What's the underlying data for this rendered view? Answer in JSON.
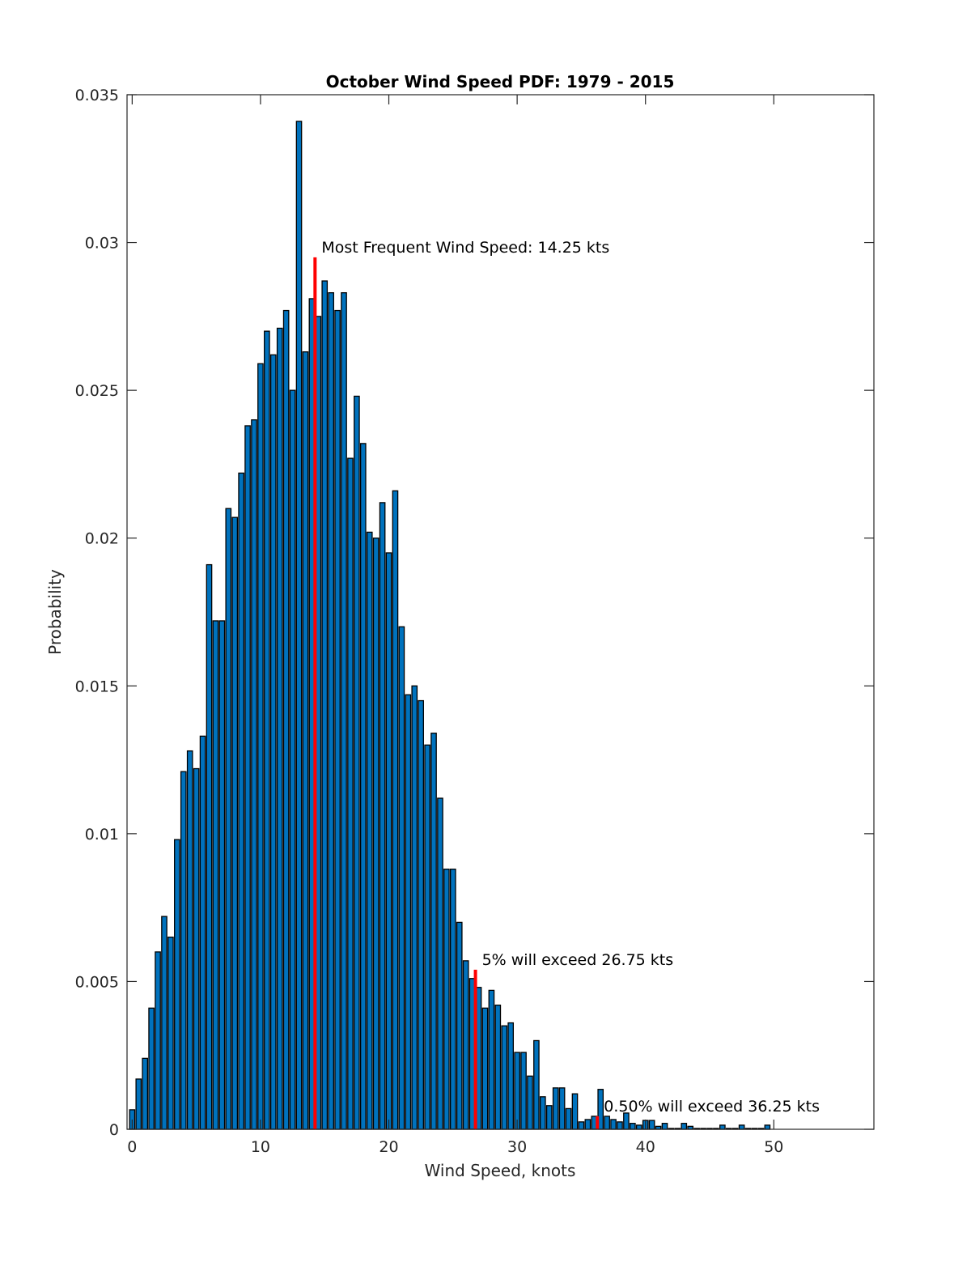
{
  "chart_data": {
    "type": "bar",
    "title": "October Wind Speed PDF: 1979 - 2015",
    "xlabel": "Wind Speed, knots",
    "ylabel": "Probability",
    "xlim": [
      -0.4,
      57.8
    ],
    "ylim": [
      0,
      0.035
    ],
    "xticks": [
      0,
      10,
      20,
      30,
      40,
      50
    ],
    "xtick_labels": [
      "0",
      "10",
      "20",
      "30",
      "40",
      "50"
    ],
    "yticks": [
      0,
      0.005,
      0.01,
      0.015,
      0.02,
      0.025,
      0.03,
      0.035
    ],
    "ytick_labels": [
      "0",
      "0.005",
      "0.01",
      "0.015",
      "0.02",
      "0.025",
      "0.03",
      "0.035"
    ],
    "grid": false,
    "bar_color": "#0072bd",
    "bar_edge_color": "#000000",
    "marker_color": "#ff0000",
    "x": [
      0,
      0.5,
      1,
      1.5,
      2,
      2.5,
      3,
      3.5,
      4,
      4.5,
      5,
      5.5,
      6,
      6.5,
      7,
      7.5,
      8,
      8.5,
      9,
      9.5,
      10,
      10.5,
      11,
      11.5,
      12,
      12.5,
      13,
      13.5,
      14,
      14.5,
      15,
      15.5,
      16,
      16.5,
      17,
      17.5,
      18,
      18.5,
      19,
      19.5,
      20,
      20.5,
      21,
      21.5,
      22,
      22.5,
      23,
      23.5,
      24,
      24.5,
      25,
      25.5,
      26,
      26.5,
      27,
      27.5,
      28,
      28.5,
      29,
      29.5,
      30,
      30.5,
      31,
      31.5,
      32,
      32.5,
      33,
      33.5,
      34,
      34.5,
      35,
      35.5,
      36,
      36.5,
      37,
      37.5,
      38,
      38.5,
      39,
      39.5,
      40,
      40.5,
      41,
      41.5,
      42,
      42.5,
      43,
      43.5,
      44,
      44.5,
      45,
      45.5,
      46,
      46.5,
      47,
      47.5,
      48,
      48.5,
      49,
      49.5
    ],
    "values": [
      0.00066,
      0.0017,
      0.0024,
      0.0041,
      0.006,
      0.0072,
      0.0065,
      0.0098,
      0.0121,
      0.0128,
      0.0122,
      0.0133,
      0.0191,
      0.0172,
      0.0172,
      0.021,
      0.0207,
      0.0222,
      0.0238,
      0.024,
      0.0259,
      0.027,
      0.0262,
      0.0271,
      0.0277,
      0.025,
      0.0341,
      0.0263,
      0.0281,
      0.0275,
      0.0287,
      0.0283,
      0.0277,
      0.0283,
      0.0227,
      0.0248,
      0.0232,
      0.0202,
      0.02,
      0.0212,
      0.0195,
      0.0216,
      0.017,
      0.0147,
      0.015,
      0.0145,
      0.013,
      0.0134,
      0.0112,
      0.0088,
      0.0088,
      0.007,
      0.0057,
      0.0051,
      0.0048,
      0.0041,
      0.0047,
      0.0042,
      0.0035,
      0.0036,
      0.0026,
      0.0026,
      0.0018,
      0.003,
      0.0011,
      0.0008,
      0.0014,
      0.0014,
      0.0007,
      0.0012,
      0.00025,
      0.00033,
      0.00044,
      0.00135,
      0.00044,
      0.00033,
      0.00025,
      0.00055,
      0.0002,
      0.00014,
      0.0003,
      0.0003,
      0.0001,
      0.0002,
      3e-05,
      3e-05,
      0.0002,
      0.0001,
      3e-05,
      3e-05,
      3e-05,
      3e-05,
      0.00014,
      3e-05,
      3e-05,
      0.00014,
      3e-05,
      3e-05,
      3e-05,
      0.00014
    ],
    "markers": [
      {
        "x": 14.25,
        "y": 0.0295,
        "label": "Most Frequent Wind Speed: 14.25 kts"
      },
      {
        "x": 26.75,
        "y": 0.0054,
        "label": "5% will exceed 26.75 kts"
      },
      {
        "x": 36.25,
        "y": 0.00044,
        "label": "0.50% will exceed 36.25 kts"
      }
    ]
  }
}
